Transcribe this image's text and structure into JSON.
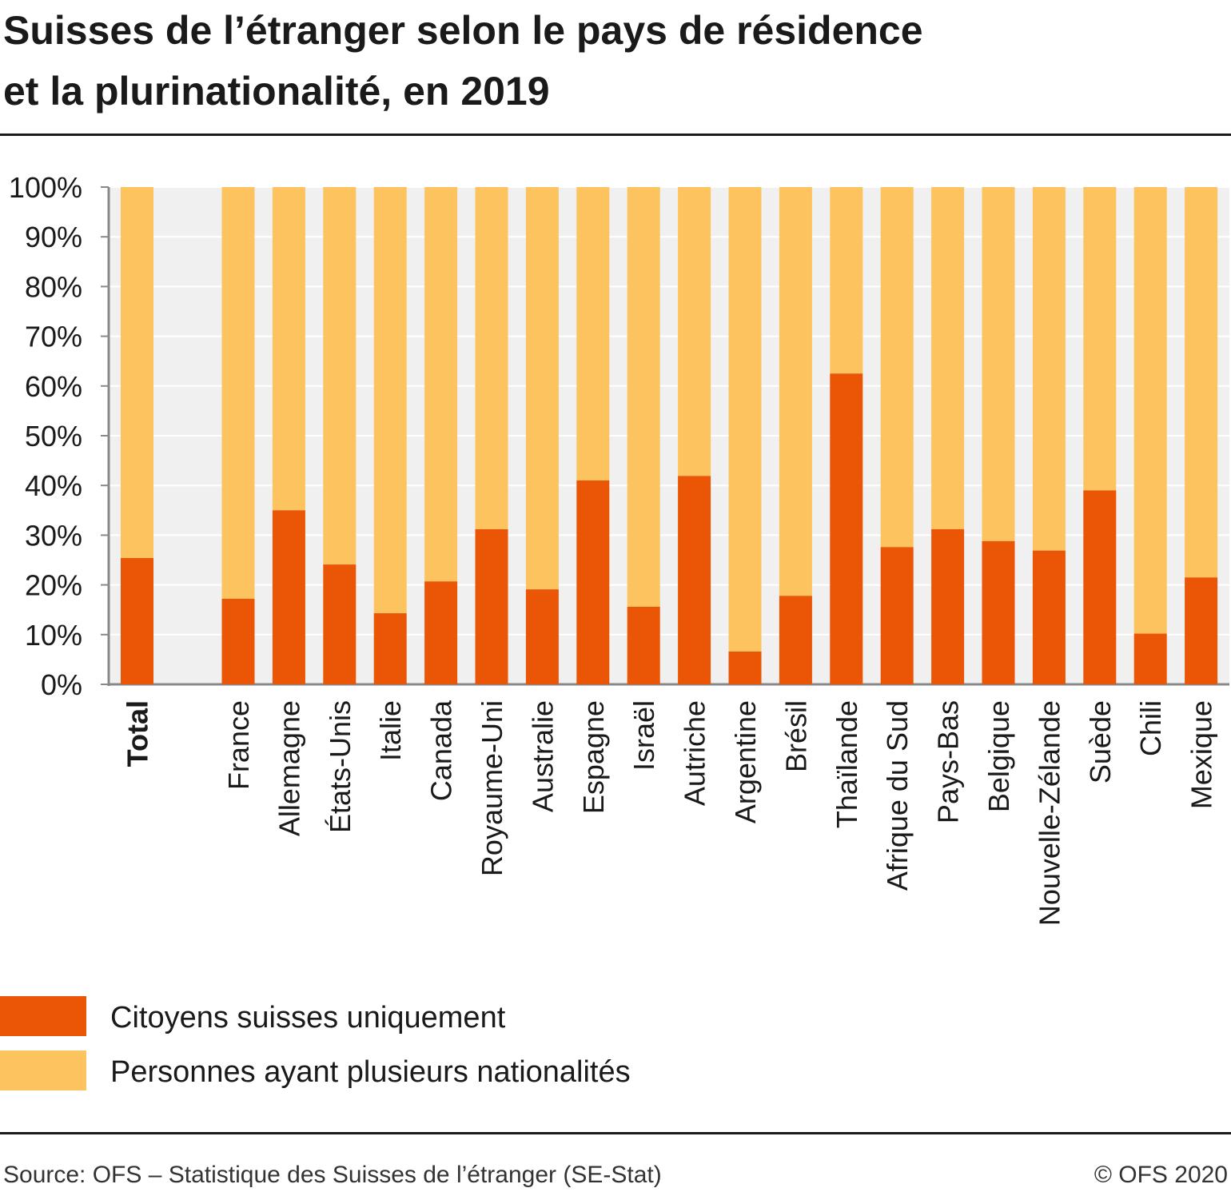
{
  "title_line1": "Suisses de l’étranger selon le pays de résidence",
  "title_line2": "et la plurinationalité, en 2019",
  "colors": {
    "swiss_only": "#ea5506",
    "multi": "#fdc35f",
    "plot_bg": "#f0f0f0",
    "grid": "#ffffff",
    "axis": "#888888"
  },
  "legend": [
    {
      "label": "Citoyens suisses uniquement",
      "color": "#ea5506"
    },
    {
      "label": "Personnes ayant plusieurs nationalités",
      "color": "#fdc35f"
    }
  ],
  "source": "Source: OFS – Statistique des Suisses de l’étranger (SE-Stat)",
  "copyright": "© OFS 2020",
  "chart_data": {
    "type": "bar",
    "stacked": true,
    "title": "Suisses de l’étranger selon le pays de résidence et la plurinationalité, en 2019",
    "categories": [
      "Total",
      "France",
      "Allemagne",
      "États-Unis",
      "Italie",
      "Canada",
      "Royaume-Uni",
      "Australie",
      "Espagne",
      "Israël",
      "Autriche",
      "Argentine",
      "Brésil",
      "Thaïlande",
      "Afrique du Sud",
      "Pays-Bas",
      "Belgique",
      "Nouvelle-Zélande",
      "Suède",
      "Chili",
      "Mexique"
    ],
    "series": [
      {
        "name": "Citoyens suisses uniquement",
        "color": "#ea5506",
        "values": [
          25.4,
          17.2,
          35.0,
          24.1,
          14.3,
          20.7,
          31.2,
          19.1,
          41.0,
          15.6,
          41.9,
          6.6,
          17.8,
          62.5,
          27.6,
          31.2,
          28.8,
          26.9,
          39.0,
          10.2,
          21.5
        ]
      },
      {
        "name": "Personnes ayant plusieurs nationalités",
        "color": "#fdc35f",
        "values": [
          74.6,
          82.8,
          65.0,
          75.9,
          85.7,
          79.3,
          68.8,
          80.9,
          59.0,
          84.4,
          58.1,
          93.4,
          82.2,
          37.5,
          72.4,
          68.8,
          71.2,
          73.1,
          61.0,
          89.8,
          78.5
        ]
      }
    ],
    "yticks": [
      "0%",
      "10%",
      "20%",
      "30%",
      "40%",
      "50%",
      "60%",
      "70%",
      "80%",
      "90%",
      "100%"
    ],
    "ylim": [
      0,
      100
    ],
    "grid": true,
    "legend_position": "bottom-left"
  }
}
